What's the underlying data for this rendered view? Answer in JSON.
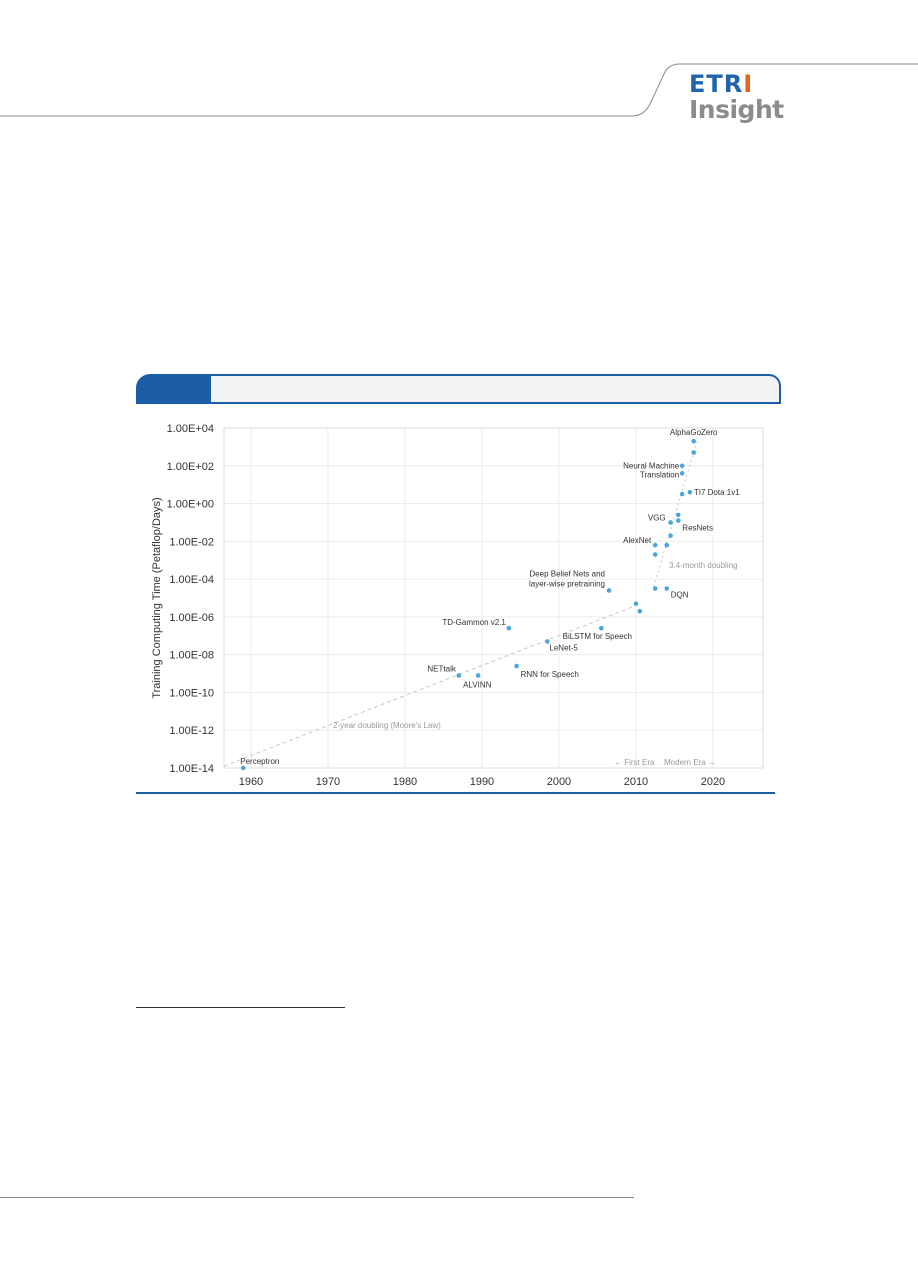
{
  "header": {
    "logo_top": "ETRI",
    "logo_bottom": "Insight"
  },
  "colors": {
    "accent": "#1b5ea7",
    "point": "#4aa6dc",
    "trend": "#c9c9c9"
  },
  "chart_data": {
    "type": "scatter",
    "title": "",
    "ylabel": "Training Computing Time (Petaflop/Days)",
    "xlabel": "",
    "y_scale": "log",
    "xlim": [
      1956.5,
      2026.5
    ],
    "ylim_exp": [
      -14,
      4
    ],
    "x_ticks": [
      1960,
      1970,
      1980,
      1990,
      2000,
      2010,
      2020
    ],
    "y_tick_labels": [
      "1.00E+04",
      "1.00E+02",
      "1.00E+00",
      "1.00E-02",
      "1.00E-04",
      "1.00E-06",
      "1.00E-08",
      "1.00E-10",
      "1.00E-12",
      "1.00E-14"
    ],
    "grid": true,
    "points": [
      {
        "label": "Perceptron",
        "x": 1959,
        "y_exp": -14
      },
      {
        "label": "NETtalk",
        "x": 1987,
        "y_exp": -9.1
      },
      {
        "label": "ALVINN",
        "x": 1989.5,
        "y_exp": -9.1
      },
      {
        "label": "RNN for Speech",
        "x": 1994.5,
        "y_exp": -8.6
      },
      {
        "label": "TD-Gammon v2.1",
        "x": 1993.5,
        "y_exp": -6.6
      },
      {
        "label": "LeNet-5",
        "x": 1998.5,
        "y_exp": -7.3
      },
      {
        "label": "BiLSTM for Speech",
        "x": 2005.5,
        "y_exp": -6.6
      },
      {
        "label": "Deep Belief Nets and layer-wise pretraining",
        "x": 2006.5,
        "y_exp": -4.6
      },
      {
        "label": "",
        "x": 2010,
        "y_exp": -5.3
      },
      {
        "label": "",
        "x": 2010.5,
        "y_exp": -5.7
      },
      {
        "label": "",
        "x": 2012.5,
        "y_exp": -4.5
      },
      {
        "label": "DQN",
        "x": 2014,
        "y_exp": -4.5
      },
      {
        "label": "AlexNet",
        "x": 2012.5,
        "y_exp": -2.2
      },
      {
        "label": "",
        "x": 2012.5,
        "y_exp": -2.7
      },
      {
        "label": "",
        "x": 2014,
        "y_exp": -2.2
      },
      {
        "label": "",
        "x": 2014.5,
        "y_exp": -1.7
      },
      {
        "label": "VGG",
        "x": 2014.5,
        "y_exp": -1.0
      },
      {
        "label": "ResNets",
        "x": 2015.5,
        "y_exp": -0.9
      },
      {
        "label": "",
        "x": 2015.5,
        "y_exp": -0.6
      },
      {
        "label": "TI7 Dota 1v1",
        "x": 2017,
        "y_exp": 0.6
      },
      {
        "label": "",
        "x": 2016,
        "y_exp": 0.5
      },
      {
        "label": "Neural Machine Translation",
        "x": 2016,
        "y_exp": 1.6
      },
      {
        "label": "",
        "x": 2016,
        "y_exp": 2.0
      },
      {
        "label": "",
        "x": 2017.5,
        "y_exp": 2.7
      },
      {
        "label": "AlphaGoZero",
        "x": 2017.5,
        "y_exp": 3.3
      }
    ],
    "annotations": {
      "trend_early": "2-year doubling (Moore's Law)",
      "trend_modern": "3.4-month doubling",
      "era_first": "← First Era",
      "era_modern": "Modern Era →"
    }
  }
}
